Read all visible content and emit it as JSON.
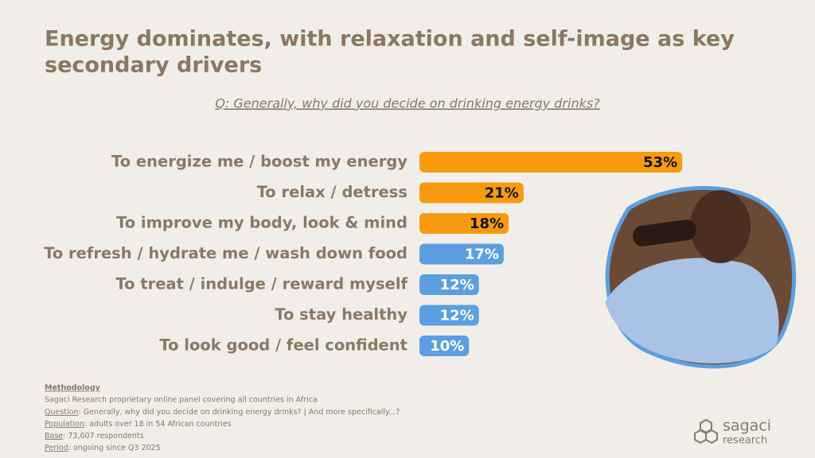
{
  "title_lines": [
    "Energy dominates, with relaxation and self-image as key",
    "secondary drivers"
  ],
  "question": "Q: Generally, why did you decide on drinking energy drinks?",
  "chart_data": {
    "type": "bar",
    "orientation": "horizontal",
    "categories": [
      "To energize me / boost my energy",
      "To relax / detress",
      "To improve my body, look & mind",
      "To refresh / hydrate me / wash down food",
      "To treat / indulge / reward myself",
      "To stay healthy",
      "To look good / feel confident"
    ],
    "values": [
      53,
      21,
      18,
      17,
      12,
      12,
      10
    ],
    "value_labels": [
      "53%",
      "21%",
      "18%",
      "17%",
      "12%",
      "12%",
      "10%"
    ],
    "colors": [
      "#f79a0f",
      "#f79a0f",
      "#f79a0f",
      "#5b9fe0",
      "#5b9fe0",
      "#5b9fe0",
      "#5b9fe0"
    ]
  },
  "methodology": {
    "heading": "Methodology",
    "intro": "Sagaci Research proprietary online panel covering all countries in Africa",
    "items": [
      {
        "label": "Question",
        "text": ": Generally, why did you decide on drinking energy drinks? | And more specifically...?"
      },
      {
        "label": "Population",
        "text": ": adults over 18 in 54 African countries"
      },
      {
        "label": "Base",
        "text": ": 73,607 respondents"
      },
      {
        "label": "Period",
        "text": ": ongoing since Q3 2025"
      }
    ]
  },
  "logo": {
    "line1": "sagaci",
    "line2": "research"
  }
}
